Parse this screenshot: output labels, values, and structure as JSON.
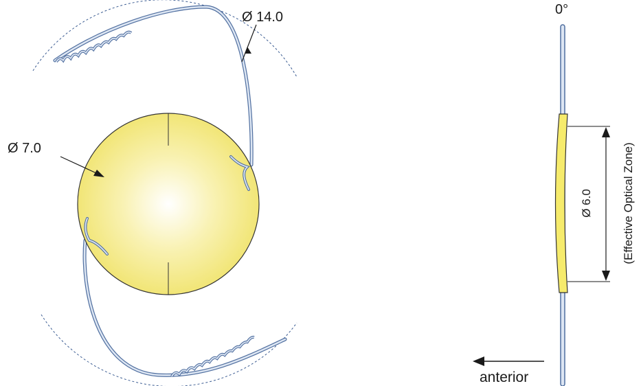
{
  "front_view": {
    "lens_diameter_label": "Ø 7.0",
    "haptic_diameter_label": "Ø 14.0"
  },
  "side_view": {
    "angle_label": "0°",
    "optical_zone_diameter_label": "Ø 6.0",
    "optical_zone_caption": "(Effective Optical Zone)",
    "direction_label": "anterior"
  },
  "colors": {
    "optic_fill": "#f3e97a",
    "optic_highlight": "#ffffff",
    "haptic": "#5a7aaf",
    "haptic_fill": "#dde6f3",
    "outline": "#333333"
  }
}
